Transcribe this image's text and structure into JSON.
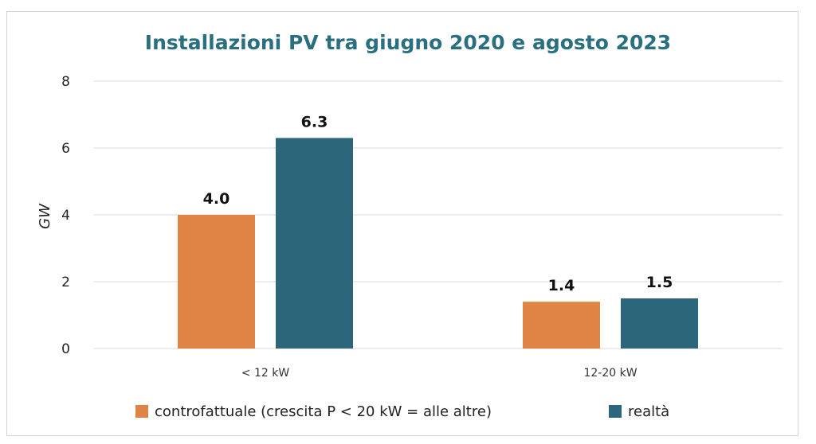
{
  "chart_data": {
    "type": "bar",
    "title": "Installazioni PV tra giugno 2020 e agosto 2023",
    "ylabel": "GW",
    "xlabel": "",
    "ylim": [
      0,
      8
    ],
    "yticks": [
      0,
      2,
      4,
      6,
      8
    ],
    "categories": [
      "< 12 kW",
      "12-20 kW"
    ],
    "series": [
      {
        "name": "controfattuale (crescita P < 20 kW = alle altre)",
        "values": [
          4.0,
          1.4
        ],
        "labels": [
          "4.0",
          "1.4"
        ],
        "color": "#df8444"
      },
      {
        "name": "realtà",
        "values": [
          6.3,
          1.5
        ],
        "labels": [
          "6.3",
          "1.5"
        ],
        "color": "#2b667b"
      }
    ],
    "grid": true,
    "legend_position": "bottom"
  }
}
